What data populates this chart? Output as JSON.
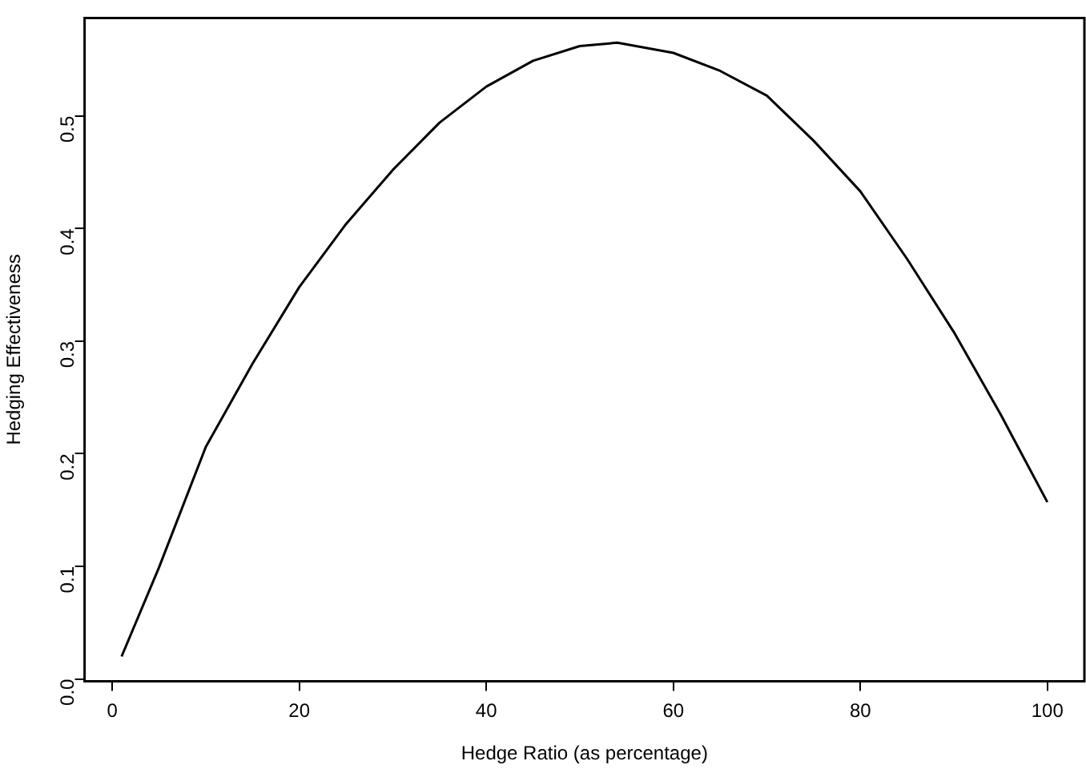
{
  "chart_data": {
    "type": "line",
    "xlabel": "Hedge Ratio (as percentage)",
    "ylabel": "Hedging Effectiveness",
    "x": [
      1,
      5,
      10,
      15,
      20,
      25,
      30,
      35,
      40,
      45,
      50,
      54,
      60,
      65,
      70,
      75,
      80,
      85,
      90,
      95,
      100
    ],
    "series": [
      {
        "color": "#000000",
        "values": [
          0.02,
          0.099,
          0.206,
          0.28,
          0.348,
          0.404,
          0.452,
          0.494,
          0.526,
          0.549,
          0.562,
          0.565,
          0.556,
          0.54,
          0.518,
          0.478,
          0.433,
          0.373,
          0.308,
          0.235,
          0.157
        ]
      }
    ],
    "xlim": [
      -2.96,
      103.96
    ],
    "xticks": [
      0,
      20,
      40,
      60,
      80,
      100
    ],
    "ylim": [
      -0.002,
      0.587
    ],
    "yticks": [
      {
        "value": 0,
        "label": "0.0"
      },
      0.1,
      0.2,
      0.3,
      0.4,
      0.5
    ],
    "grid": false,
    "legend": false,
    "marker": "none",
    "line_style": "solid"
  }
}
